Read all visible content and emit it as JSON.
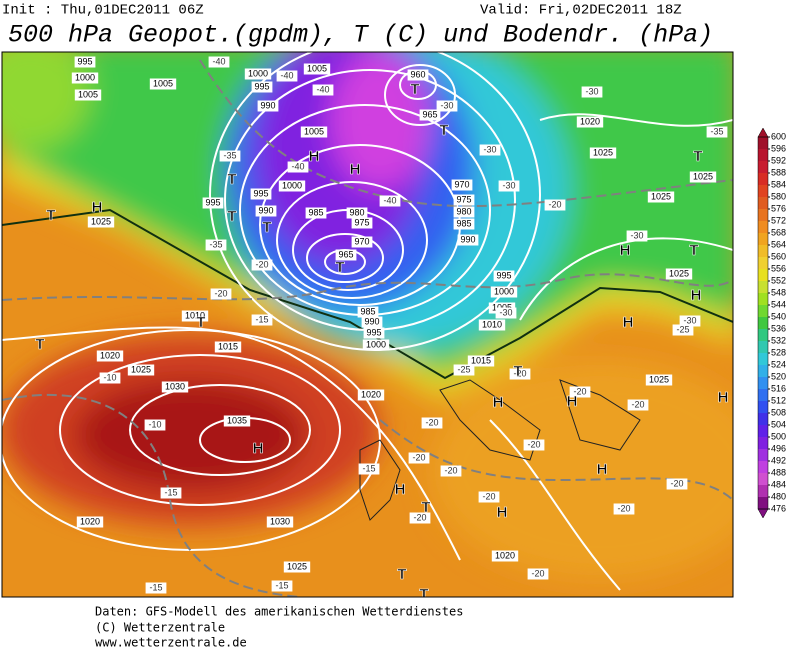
{
  "header": {
    "init": "Init : Thu,01DEC2011 06Z",
    "valid": "Valid: Fri,02DEC2011 18Z",
    "title": "500 hPa Geopot.(gpdm), T (C) und Bodendr. (hPa)"
  },
  "map": {
    "isobar_labels": [
      "995",
      "1000",
      "1005",
      "1005",
      "1000",
      "995",
      "990",
      "1005",
      "960",
      "965",
      "1005",
      "1000",
      "995",
      "995",
      "990",
      "985",
      "980",
      "975",
      "970",
      "965",
      "970",
      "975",
      "980",
      "985",
      "990",
      "995",
      "1000",
      "1005",
      "1010",
      "1015",
      "1020",
      "985",
      "990",
      "995",
      "1000",
      "1020",
      "1025",
      "1030",
      "1035",
      "1015",
      "1010",
      "1020",
      "1030",
      "1025",
      "1020",
      "1025",
      "1020",
      "1025",
      "1025",
      "1025",
      "1025",
      "1025"
    ],
    "temp_labels": [
      "-40",
      "-40",
      "-40",
      "-30",
      "-30",
      "-30",
      "-30",
      "-35",
      "-35",
      "-40",
      "-40",
      "-20",
      "-35",
      "-20",
      "-20",
      "-15",
      "-30",
      "-30",
      "-30",
      "-25",
      "-20",
      "-20",
      "-20",
      "-20",
      "-20",
      "-10",
      "-10",
      "-15",
      "-15",
      "-15",
      "-15",
      "-20",
      "-20",
      "-20",
      "-20",
      "-20",
      "-20",
      "-25",
      "-20"
    ],
    "centers": [
      "T",
      "T",
      "H",
      "H",
      "T",
      "T",
      "T",
      "H",
      "T",
      "T",
      "T",
      "H",
      "H",
      "H",
      "T",
      "T",
      "T",
      "H",
      "H",
      "H",
      "H",
      "H",
      "T",
      "H",
      "T",
      "T",
      "H",
      "T"
    ]
  },
  "colorbar": {
    "ticks": [
      600,
      596,
      592,
      588,
      584,
      580,
      576,
      572,
      568,
      564,
      560,
      556,
      552,
      548,
      544,
      540,
      536,
      532,
      528,
      524,
      520,
      516,
      512,
      508,
      504,
      500,
      496,
      492,
      488,
      484,
      480,
      476
    ],
    "colors": [
      "#a0102a",
      "#b8142e",
      "#c81c30",
      "#d82c24",
      "#e04420",
      "#e05c20",
      "#e87420",
      "#f08c20",
      "#f0a420",
      "#f0bc28",
      "#f0d030",
      "#e8e020",
      "#c8e030",
      "#a0e020",
      "#70d830",
      "#40c840",
      "#30c880",
      "#30c8b0",
      "#30c8d8",
      "#30b0e8",
      "#3090f0",
      "#3070f0",
      "#3050f0",
      "#4030e8",
      "#6020e8",
      "#8020e0",
      "#a030e0",
      "#c040e0",
      "#d050d0",
      "#b030b0",
      "#801080"
    ]
  },
  "footer": [
    "Daten: GFS-Modell des amerikanischen Wetterdienstes",
    "(C) Wetterzentrale",
    "www.wetterzentrale.de"
  ]
}
